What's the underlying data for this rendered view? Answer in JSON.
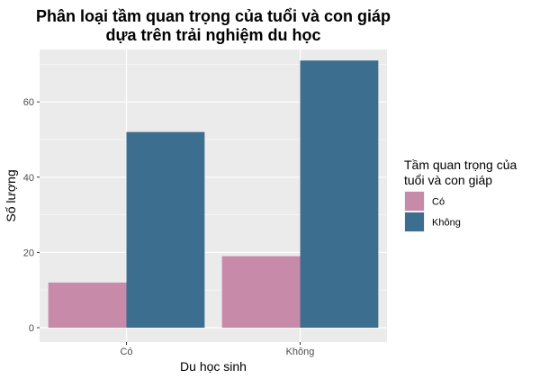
{
  "chart_data": {
    "type": "bar",
    "title_lines": [
      "Phân loại tầm quan trọng của tuổi và con giáp",
      "dựa trên trải nghiệm du học"
    ],
    "xlabel": "Du học sinh",
    "ylabel": "Số lượng",
    "categories": [
      "Có",
      "Không"
    ],
    "series": [
      {
        "name": "Có",
        "values": [
          12,
          19
        ],
        "color": "#c78ba9"
      },
      {
        "name": "Không",
        "values": [
          52,
          71
        ],
        "color": "#3b6e8f"
      }
    ],
    "ylim": [
      0,
      74
    ],
    "yticks": [
      0,
      20,
      40,
      60
    ],
    "grid": true,
    "legend": {
      "title_lines": [
        "Tầm quan trọng của",
        "tuổi và con giáp"
      ],
      "position": "right"
    }
  }
}
